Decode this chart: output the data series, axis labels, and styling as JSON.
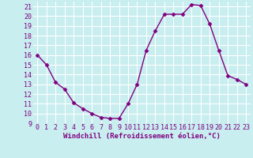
{
  "x": [
    0,
    1,
    2,
    3,
    4,
    5,
    6,
    7,
    8,
    9,
    10,
    11,
    12,
    13,
    14,
    15,
    16,
    17,
    18,
    19,
    20,
    21,
    22,
    23
  ],
  "y": [
    16.0,
    15.0,
    13.2,
    12.5,
    11.1,
    10.5,
    10.0,
    9.6,
    9.5,
    9.5,
    11.0,
    13.0,
    16.5,
    18.5,
    20.2,
    20.2,
    20.2,
    21.2,
    21.1,
    19.2,
    16.5,
    13.9,
    13.5,
    13.0
  ],
  "line_color": "#800080",
  "marker": "D",
  "marker_size": 2.5,
  "xlabel": "Windchill (Refroidissement éolien,°C)",
  "xlabel_fontsize": 6.5,
  "ylim": [
    9,
    21.5
  ],
  "xlim": [
    -0.5,
    23.5
  ],
  "yticks": [
    9,
    10,
    11,
    12,
    13,
    14,
    15,
    16,
    17,
    18,
    19,
    20,
    21
  ],
  "xticks": [
    0,
    1,
    2,
    3,
    4,
    5,
    6,
    7,
    8,
    9,
    10,
    11,
    12,
    13,
    14,
    15,
    16,
    17,
    18,
    19,
    20,
    21,
    22,
    23
  ],
  "bg_color": "#c8eef0",
  "grid_color": "#ffffff",
  "tick_fontsize": 6,
  "line_width": 1.0
}
